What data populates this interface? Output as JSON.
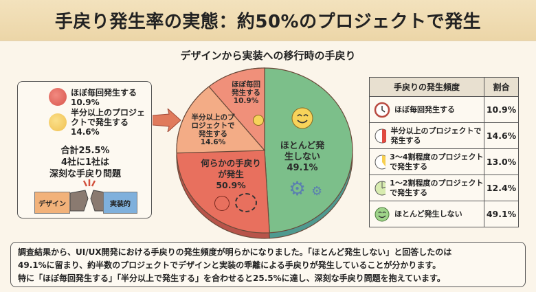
{
  "header": {
    "title": "手戻り発生率の実態：約50%のプロジェクトで発生",
    "subtitle": "デザインから実装への移行時の手戻り"
  },
  "left_box": {
    "item1_label": "ほぼ毎回発生する",
    "item1_value": "10.9%",
    "item2_label": "半分以上のプロジェクトで発生する",
    "item2_value": "14.6%",
    "total": "合計25.5%",
    "total_line2": "4社に1社は",
    "total_line3": "深刻な手戻り問題",
    "tag_design": "デザイン",
    "tag_impl": "実装的"
  },
  "chart_data": {
    "type": "pie",
    "title": "デザインから実装への移行時の手戻り",
    "slices": [
      {
        "label": "ほとんど発生しない",
        "value": 49.1,
        "color": "#7cbf8a"
      },
      {
        "label": "何らかの手戻りが発生",
        "value": 50.9,
        "color": "#e8705e"
      }
    ],
    "sub_slices": [
      {
        "label": "ほぼ毎回発生する",
        "value": 10.9,
        "color": "#f0907a"
      },
      {
        "label": "半分以上のプロジェクトで発生する",
        "value": 14.6,
        "color": "#f3ac86"
      }
    ],
    "labels": {
      "none": "ほとんど発生しない",
      "none_pct": "49.1%",
      "any": "何らかの手戻りが発生",
      "any_pct": "50.9%",
      "s1": "ほぼ毎回発生する",
      "s1_pct": "10.9%",
      "s2": "半分以上のプロジェクトで発生する",
      "s2_pct": "14.6%"
    }
  },
  "table": {
    "headers": [
      "手戻りの発生頻度",
      "割合"
    ],
    "rows": [
      {
        "label": "ほぼ毎回発生する",
        "value": "10.9%",
        "icon": "clock-icon"
      },
      {
        "label": "半分以上のプロジェクトで発生する",
        "value": "14.6%",
        "icon": "half-circle-icon"
      },
      {
        "label": "3〜4割程度のプロジェクトで発生する",
        "value": "13.0%",
        "icon": "pie-wedge-icon"
      },
      {
        "label": "1〜2割程度のプロジェクトで発生する",
        "value": "12.4%",
        "icon": "small-wedge-icon"
      },
      {
        "label": "ほとんど発生しない",
        "value": "49.1%",
        "icon": "smiley-icon"
      }
    ]
  },
  "summary": {
    "line1": "調査結果から、UI/UX開発における手戻りの発生頻度が明らかになりました。「ほとんど発生しない」と回答したのは",
    "line2": "49.1%に留まり、約半数のプロジェクトでデザインと実装の乖離による手戻りが発生していることが分かります。",
    "line3": "特に「ほぼ毎回発生する」「半分以上で発生する」を合わせると25.5%に達し、深刻な手戻り問題を抱えています。"
  }
}
